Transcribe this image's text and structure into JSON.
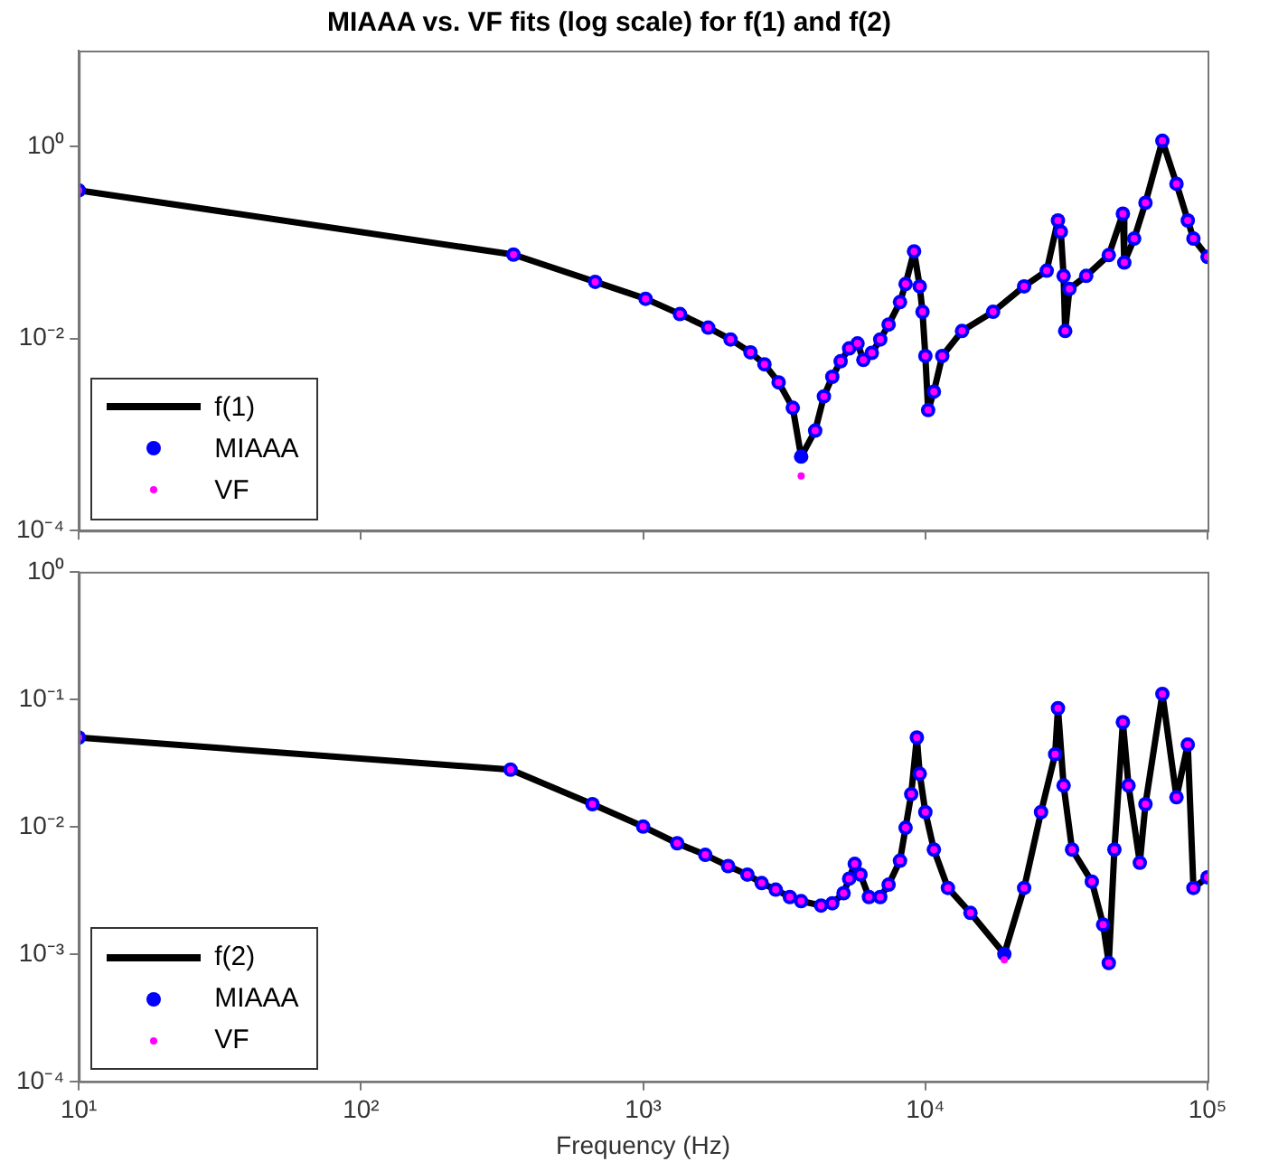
{
  "chart_data": [
    {
      "type": "line",
      "title": "MIAAA vs. VF fits (log scale) for f(1) and f(2)",
      "log": "xy",
      "grid": false,
      "legend": "bottom left",
      "tick_labels": "y",
      "x": [
        10,
        347,
        676,
        1020,
        1350,
        1700,
        2040,
        2400,
        2690,
        3020,
        3390,
        3630,
        4070,
        4370,
        4680,
        5010,
        5370,
        5750,
        6030,
        6460,
        6920,
        7410,
        8130,
        8510,
        9120,
        9550,
        9770,
        10000,
        10230,
        10720,
        11480,
        13490,
        17380,
        22390,
        26920,
        29500,
        30200,
        30900,
        31300,
        32400,
        37150,
        44670,
        50120,
        50700,
        54950,
        60260,
        69180,
        77620,
        85110,
        89130,
        100000
      ],
      "xlim": [
        10,
        100000
      ],
      "xticks": [
        {
          "value": 10,
          "label": null
        },
        {
          "value": 100,
          "label": null
        },
        {
          "value": 1000,
          "label": null
        },
        {
          "value": 10000,
          "label": null
        },
        {
          "value": 100000,
          "label": null
        }
      ],
      "ylim": [
        0.0001,
        10
      ],
      "yticks": [
        {
          "value": 0.0001,
          "label": "10⁻⁴"
        },
        {
          "value": 0.01,
          "label": "10⁻²"
        },
        {
          "value": 1,
          "label": "10⁰"
        }
      ],
      "series": [
        {
          "name": "f(1)",
          "type": "line",
          "marker": "none",
          "color": "#000000",
          "values": [
            0.35,
            0.075,
            0.039,
            0.026,
            0.018,
            0.013,
            0.0098,
            0.0072,
            0.0054,
            0.0035,
            0.0019,
            0.00059,
            0.0011,
            0.0025,
            0.004,
            0.0058,
            0.0079,
            0.0089,
            0.006,
            0.0071,
            0.0098,
            0.014,
            0.024,
            0.037,
            0.081,
            0.035,
            0.019,
            0.0066,
            0.0018,
            0.0028,
            0.0066,
            0.012,
            0.019,
            0.035,
            0.051,
            0.17,
            0.13,
            0.045,
            0.012,
            0.033,
            0.045,
            0.074,
            0.2,
            0.062,
            0.11,
            0.26,
            1.15,
            0.41,
            0.17,
            0.11,
            0.071
          ]
        },
        {
          "name": "MIAAA",
          "type": "scatter",
          "marker": "circle",
          "color": "#0000ff",
          "values": [
            0.35,
            0.075,
            0.039,
            0.026,
            0.018,
            0.013,
            0.0098,
            0.0072,
            0.0054,
            0.0035,
            0.0019,
            0.00059,
            0.0011,
            0.0025,
            0.004,
            0.0058,
            0.0079,
            0.0089,
            0.006,
            0.0071,
            0.0098,
            0.014,
            0.024,
            0.037,
            0.081,
            0.035,
            0.019,
            0.0066,
            0.0018,
            0.0028,
            0.0066,
            0.012,
            0.019,
            0.035,
            0.051,
            0.17,
            0.13,
            0.045,
            0.012,
            0.033,
            0.045,
            0.074,
            0.2,
            0.062,
            0.11,
            0.26,
            1.15,
            0.41,
            0.17,
            0.11,
            0.071
          ]
        },
        {
          "name": "VF",
          "type": "scatter",
          "marker": "circle",
          "color": "#ff00ff",
          "values": [
            0.35,
            0.075,
            0.039,
            0.026,
            0.018,
            0.013,
            0.0098,
            0.0072,
            0.0054,
            0.0035,
            0.0019,
            0.00037,
            0.0011,
            0.0025,
            0.004,
            0.0058,
            0.0079,
            0.0089,
            0.006,
            0.0071,
            0.0098,
            0.014,
            0.024,
            0.037,
            0.081,
            0.035,
            0.019,
            0.0066,
            0.0018,
            0.0028,
            0.0066,
            0.012,
            0.019,
            0.035,
            0.051,
            0.17,
            0.13,
            0.045,
            0.012,
            0.033,
            0.045,
            0.074,
            0.2,
            0.062,
            0.11,
            0.26,
            1.15,
            0.41,
            0.17,
            0.11,
            0.071
          ]
        }
      ]
    },
    {
      "type": "line",
      "xlabel": "Frequency (Hz)",
      "log": "xy",
      "grid": false,
      "legend": "bottom left",
      "x": [
        10,
        339,
        661,
        1000,
        1320,
        1660,
        2000,
        2340,
        2630,
        2950,
        3310,
        3630,
        4270,
        4680,
        5130,
        5370,
        5620,
        5890,
        6310,
        6920,
        7410,
        8130,
        8510,
        8910,
        9330,
        9550,
        10000,
        10720,
        12020,
        14450,
        19050,
        22390,
        25700,
        28840,
        29510,
        30900,
        33110,
        38900,
        42660,
        44670,
        46770,
        50120,
        52480,
        57540,
        60260,
        69180,
        77620,
        85110,
        89130,
        100000
      ],
      "xlim": [
        10,
        100000
      ],
      "xticks": [
        {
          "value": 10,
          "label": "10¹"
        },
        {
          "value": 100,
          "label": "10²"
        },
        {
          "value": 1000,
          "label": "10³"
        },
        {
          "value": 10000,
          "label": "10⁴"
        },
        {
          "value": 100000,
          "label": "10⁵"
        }
      ],
      "ylim": [
        0.0001,
        1
      ],
      "yticks": [
        {
          "value": 0.0001,
          "label": "10⁻⁴"
        },
        {
          "value": 0.001,
          "label": "10⁻³"
        },
        {
          "value": 0.01,
          "label": "10⁻²"
        },
        {
          "value": 0.1,
          "label": "10⁻¹"
        },
        {
          "value": 1,
          "label": "10⁰"
        }
      ],
      "series": [
        {
          "name": "f(2)",
          "type": "line",
          "marker": "none",
          "color": "#000000",
          "values": [
            0.05,
            0.028,
            0.015,
            0.01,
            0.0074,
            0.006,
            0.0049,
            0.0042,
            0.0036,
            0.0032,
            0.0028,
            0.0026,
            0.0024,
            0.0025,
            0.003,
            0.0039,
            0.0051,
            0.0042,
            0.0028,
            0.0028,
            0.0035,
            0.0054,
            0.0098,
            0.018,
            0.05,
            0.026,
            0.013,
            0.0066,
            0.0033,
            0.0021,
            0.001,
            0.0033,
            0.013,
            0.037,
            0.085,
            0.021,
            0.0066,
            0.0037,
            0.0017,
            0.00085,
            0.0066,
            0.066,
            0.021,
            0.0052,
            0.015,
            0.11,
            0.017,
            0.044,
            0.0033,
            0.004
          ]
        },
        {
          "name": "MIAAA",
          "type": "scatter",
          "marker": "circle",
          "color": "#0000ff",
          "values": [
            0.05,
            0.028,
            0.015,
            0.01,
            0.0074,
            0.006,
            0.0049,
            0.0042,
            0.0036,
            0.0032,
            0.0028,
            0.0026,
            0.0024,
            0.0025,
            0.003,
            0.0039,
            0.0051,
            0.0042,
            0.0028,
            0.0028,
            0.0035,
            0.0054,
            0.0098,
            0.018,
            0.05,
            0.026,
            0.013,
            0.0066,
            0.0033,
            0.0021,
            0.001,
            0.0033,
            0.013,
            0.037,
            0.085,
            0.021,
            0.0066,
            0.0037,
            0.0017,
            0.00085,
            0.0066,
            0.066,
            0.021,
            0.0052,
            0.015,
            0.11,
            0.017,
            0.044,
            0.0033,
            0.004
          ]
        },
        {
          "name": "VF",
          "type": "scatter",
          "marker": "circle",
          "color": "#ff00ff",
          "values": [
            0.05,
            0.028,
            0.015,
            0.01,
            0.0074,
            0.006,
            0.0049,
            0.0042,
            0.0036,
            0.0032,
            0.0028,
            0.0026,
            0.0024,
            0.0025,
            0.003,
            0.0039,
            0.0051,
            0.0042,
            0.0028,
            0.0028,
            0.0035,
            0.0054,
            0.0098,
            0.018,
            0.05,
            0.026,
            0.013,
            0.0066,
            0.0033,
            0.0021,
            0.0009,
            0.0033,
            0.013,
            0.037,
            0.085,
            0.021,
            0.0066,
            0.0037,
            0.0017,
            0.00085,
            0.0066,
            0.066,
            0.021,
            0.0052,
            0.015,
            0.11,
            0.017,
            0.044,
            0.0033,
            0.004
          ]
        }
      ]
    }
  ]
}
